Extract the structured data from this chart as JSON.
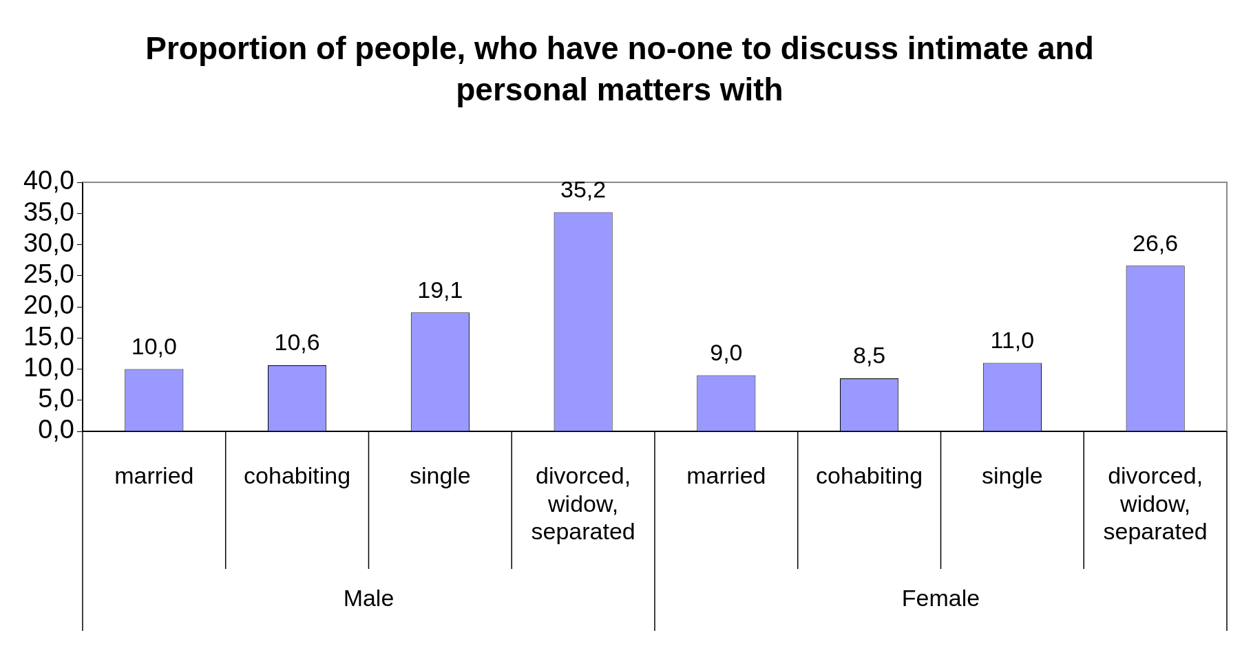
{
  "chart_data": {
    "type": "bar",
    "title": "Proportion of people, who have no-one to discuss intimate and personal matters with",
    "categories": [
      "married",
      "cohabiting",
      "single",
      "divorced, widow, separated",
      "married",
      "cohabiting",
      "single",
      "divorced, widow, separated"
    ],
    "values": [
      10.0,
      10.6,
      19.1,
      35.2,
      9.0,
      8.5,
      11.0,
      26.6
    ],
    "value_labels": [
      "10,0",
      "10,6",
      "19,1",
      "35,2",
      "9,0",
      "8,5",
      "11,0",
      "26,6"
    ],
    "color": "#9999ff",
    "ylim": [
      0,
      40
    ],
    "yticks": [
      {
        "value": 0,
        "label": "0,0"
      },
      {
        "value": 5,
        "label": "5,0"
      },
      {
        "value": 10,
        "label": "10,0"
      },
      {
        "value": 15,
        "label": "15,0"
      },
      {
        "value": 20,
        "label": "20,0"
      },
      {
        "value": 25,
        "label": "25,0"
      },
      {
        "value": 30,
        "label": "30,0"
      },
      {
        "value": 35,
        "label": "35,0"
      },
      {
        "value": 40,
        "label": "40,0"
      }
    ],
    "annotations": [
      "Male",
      "Female"
    ],
    "grid": false,
    "legend": false
  }
}
